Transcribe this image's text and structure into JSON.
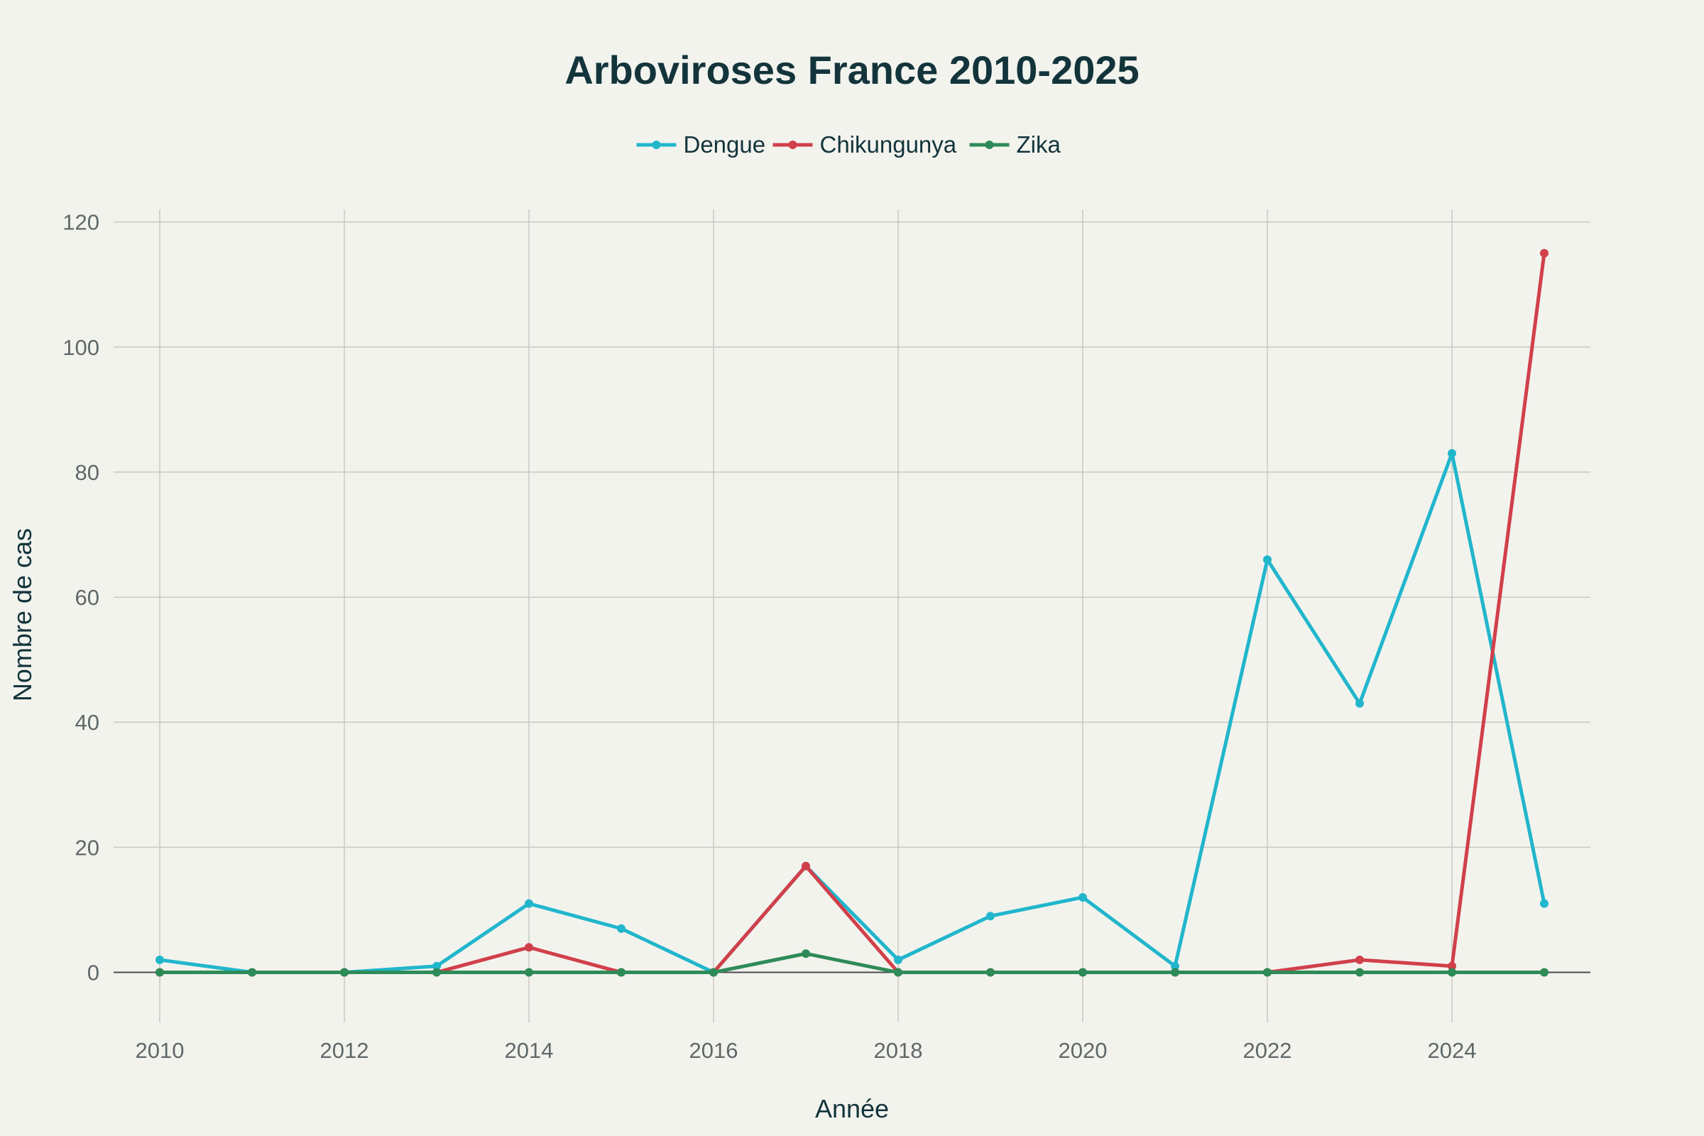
{
  "chart_data": {
    "type": "line",
    "title": "Arboviroses France 2010-2025",
    "xlabel": "Année",
    "ylabel": "Nombre de cas",
    "x": [
      2010,
      2011,
      2012,
      2013,
      2014,
      2015,
      2016,
      2017,
      2018,
      2019,
      2020,
      2021,
      2022,
      2023,
      2024,
      2025
    ],
    "xlim": [
      2009.5,
      2025.5
    ],
    "ylim": [
      -8,
      122
    ],
    "xticks": [
      2010,
      2012,
      2014,
      2016,
      2018,
      2020,
      2022,
      2024
    ],
    "yticks": [
      0,
      20,
      40,
      60,
      80,
      100,
      120
    ],
    "grid": true,
    "legend_position": "top-center",
    "series": [
      {
        "name": "Dengue",
        "color": "#21b6cc",
        "values": [
          2,
          0,
          0,
          1,
          11,
          7,
          0,
          17,
          2,
          9,
          12,
          1,
          66,
          43,
          83,
          11
        ]
      },
      {
        "name": "Chikungunya",
        "color": "#d1404a",
        "values": [
          0,
          0,
          0,
          0,
          4,
          0,
          0,
          17,
          0,
          0,
          0,
          0,
          0,
          2,
          1,
          115
        ]
      },
      {
        "name": "Zika",
        "color": "#2e8b57",
        "values": [
          0,
          0,
          0,
          0,
          0,
          0,
          0,
          3,
          0,
          0,
          0,
          0,
          0,
          0,
          0,
          0
        ]
      }
    ]
  }
}
